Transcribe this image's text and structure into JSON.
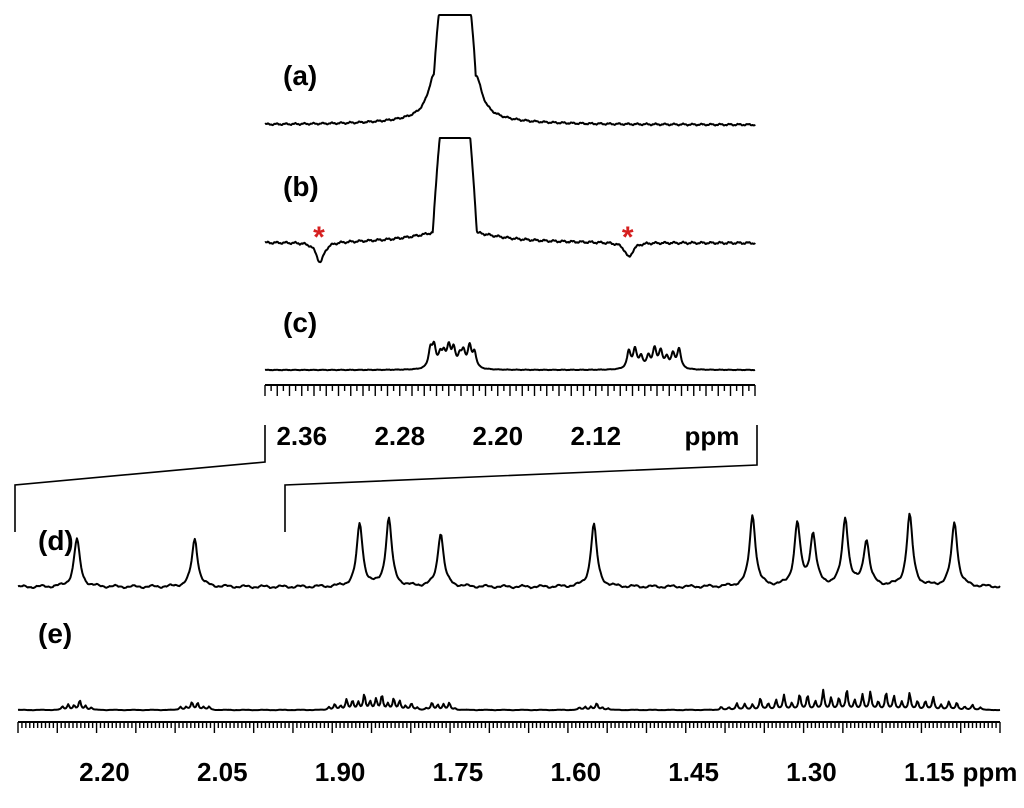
{
  "colors": {
    "trace": "#000000",
    "marker": "#d62020"
  },
  "chart_data": [
    {
      "type": "line",
      "panels": [
        "(a)",
        "(b)",
        "(c)"
      ],
      "xlabel": "ppm",
      "x_tick_labels": [
        "2.36",
        "2.28",
        "2.20",
        "2.12"
      ],
      "x_ticks": [
        2.36,
        2.28,
        2.2,
        2.12
      ],
      "xlim": [
        2.39,
        1.99
      ],
      "x_reversed": true,
      "series": [
        {
          "label": "(a)",
          "peaks": [
            {
              "x": 2.235,
              "height": 1.0,
              "width": 0.017,
              "shape": "clipped"
            },
            {
              "x": 2.252,
              "height": 0.35,
              "width": 0.006
            },
            {
              "x": 2.218,
              "height": 0.35,
              "width": 0.006
            }
          ]
        },
        {
          "label": "(b)",
          "peaks": [
            {
              "x": 2.235,
              "height": 1.0,
              "width": 0.018,
              "shape": "clipped"
            },
            {
              "x": 2.345,
              "height": -0.18,
              "width": 0.004
            },
            {
              "x": 2.093,
              "height": -0.13,
              "width": 0.004
            }
          ],
          "markers": [
            {
              "x": 2.345,
              "text": "*"
            },
            {
              "x": 2.093,
              "text": "*"
            }
          ]
        },
        {
          "label": "(c)",
          "multiplets": [
            {
              "lines": [
                2.255,
                2.252,
                2.247,
                2.244,
                2.24,
                2.236,
                2.231,
                2.228,
                2.223,
                2.219
              ],
              "height": 0.85
            },
            {
              "lines": [
                2.093,
                2.088,
                2.083,
                2.077,
                2.072,
                2.067,
                2.062,
                2.057,
                2.052
              ],
              "height": 0.8
            }
          ]
        }
      ]
    },
    {
      "type": "line",
      "panels": [
        "(d)",
        "(e)"
      ],
      "xlabel": "ppm",
      "x_tick_labels": [
        "2.20",
        "2.05",
        "1.90",
        "1.75",
        "1.60",
        "1.45",
        "1.30",
        "1.15"
      ],
      "x_ticks": [
        2.2,
        2.05,
        1.9,
        1.75,
        1.6,
        1.45,
        1.3,
        1.15
      ],
      "xlim": [
        2.31,
        1.06
      ],
      "x_reversed": true,
      "series": [
        {
          "label": "(d)",
          "peaks": [
            {
              "x": 2.235,
              "height": 0.55
            },
            {
              "x": 2.085,
              "height": 0.55
            },
            {
              "x": 1.875,
              "height": 0.72
            },
            {
              "x": 1.838,
              "height": 0.78
            },
            {
              "x": 1.772,
              "height": 0.62
            },
            {
              "x": 1.577,
              "height": 0.72
            },
            {
              "x": 1.375,
              "height": 0.82
            },
            {
              "x": 1.318,
              "height": 0.72
            },
            {
              "x": 1.298,
              "height": 0.58
            },
            {
              "x": 1.257,
              "height": 0.78
            },
            {
              "x": 1.23,
              "height": 0.52
            },
            {
              "x": 1.175,
              "height": 0.82
            },
            {
              "x": 1.118,
              "height": 0.74
            }
          ]
        },
        {
          "label": "(e)",
          "multiplets": [
            {
              "center": 2.235,
              "spread": 0.022,
              "count": 6,
              "height": 0.38
            },
            {
              "center": 2.085,
              "spread": 0.022,
              "count": 6,
              "height": 0.36
            },
            {
              "center": 1.858,
              "spread": 0.06,
              "count": 16,
              "height": 0.62
            },
            {
              "center": 1.772,
              "spread": 0.022,
              "count": 6,
              "height": 0.36
            },
            {
              "center": 1.577,
              "spread": 0.022,
              "count": 6,
              "height": 0.26
            },
            {
              "center": 1.25,
              "spread": 0.17,
              "count": 34,
              "height": 0.8
            }
          ]
        }
      ]
    }
  ]
}
